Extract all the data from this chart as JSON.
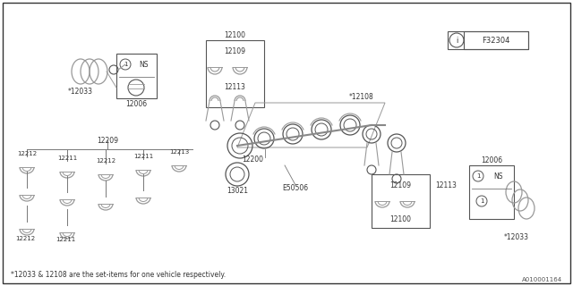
{
  "bg_color": "#ffffff",
  "border_color": "#555555",
  "line_color": "#888888",
  "footer_text": "*12033 & 12108 are the set-items for one vehicle respectively.",
  "diagram_id": "A010001164",
  "part_number_box": "F32304"
}
